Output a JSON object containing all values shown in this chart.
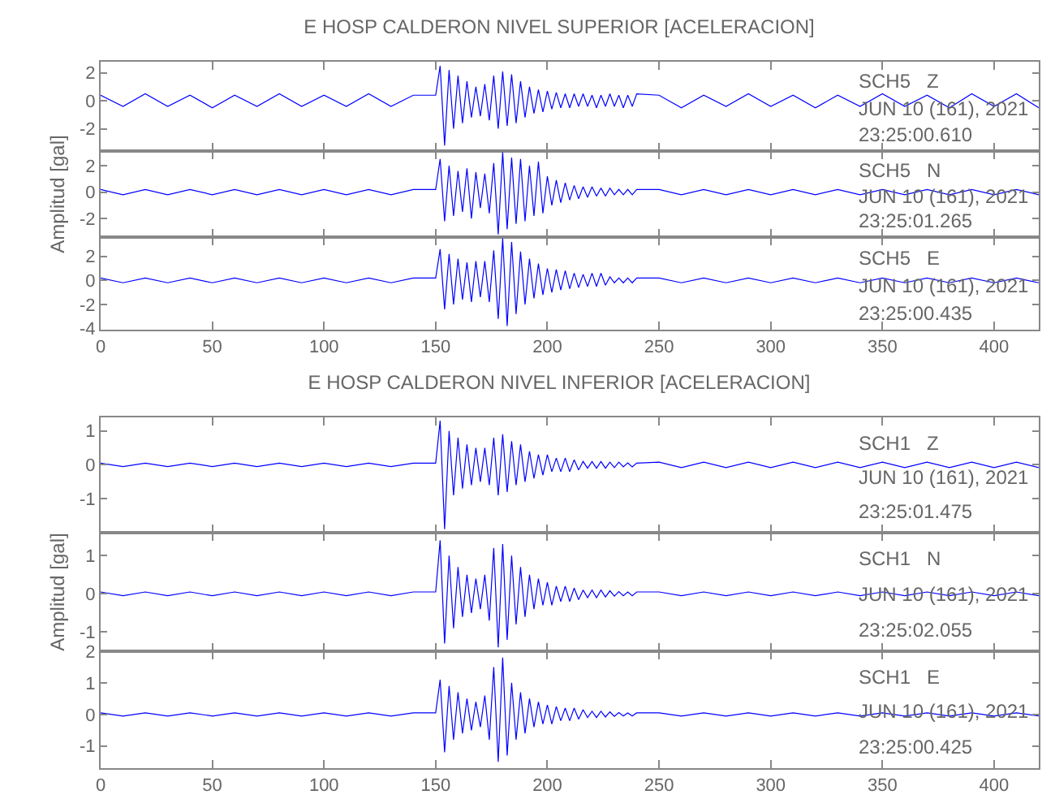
{
  "chart_data": [
    {
      "type": "line",
      "title": "E HOSP CALDERON NIVEL SUPERIOR [ACELERACION]",
      "tick_labels": "y",
      "xlim": [
        0,
        420
      ],
      "xticks": [
        0,
        50,
        100,
        150,
        200,
        250,
        300,
        350,
        400
      ],
      "ylim": [
        -3.6,
        2.8
      ],
      "yticks": [
        -2,
        0,
        2
      ],
      "annotations": [
        "SCH5   Z",
        "JUN 10 (161), 2021",
        "23:25:00.610"
      ],
      "x": [
        0,
        10,
        20,
        30,
        40,
        50,
        60,
        70,
        80,
        90,
        100,
        110,
        120,
        130,
        140,
        150,
        152,
        154,
        156,
        158,
        160,
        162,
        164,
        166,
        168,
        170,
        172,
        174,
        176,
        178,
        180,
        182,
        184,
        186,
        188,
        190,
        192,
        194,
        196,
        198,
        200,
        202,
        204,
        206,
        208,
        210,
        212,
        214,
        216,
        218,
        220,
        222,
        224,
        226,
        228,
        230,
        232,
        234,
        236,
        238,
        240,
        250,
        260,
        270,
        280,
        290,
        300,
        310,
        320,
        330,
        340,
        350,
        360,
        370,
        380,
        390,
        400,
        410,
        420
      ],
      "series": [
        {
          "color": "#0000ff",
          "values": [
            0.4,
            -0.4,
            0.5,
            -0.4,
            0.4,
            -0.5,
            0.4,
            -0.4,
            0.5,
            -0.4,
            0.4,
            -0.4,
            0.5,
            -0.4,
            0.4,
            0.4,
            2.5,
            -3.2,
            2.2,
            -2.0,
            1.8,
            -1.6,
            1.4,
            -1.2,
            1.0,
            -1.1,
            1.2,
            -1.4,
            1.8,
            -2.0,
            2.1,
            -1.8,
            1.9,
            -1.6,
            1.4,
            -1.2,
            1.0,
            -0.9,
            0.8,
            -0.8,
            0.7,
            -0.6,
            0.6,
            -0.5,
            0.5,
            -0.5,
            0.5,
            -0.4,
            0.5,
            -0.4,
            0.4,
            -0.5,
            0.4,
            -0.4,
            0.5,
            -0.4,
            0.4,
            -0.5,
            0.4,
            -0.4,
            0.5,
            0.4,
            -0.5,
            0.4,
            -0.4,
            0.5,
            -0.4,
            0.4,
            -0.5,
            0.4,
            -0.4,
            0.5,
            -0.4,
            0.4,
            -0.5,
            0.5,
            -0.4,
            0.5,
            -0.5
          ]
        }
      ]
    },
    {
      "type": "line",
      "ylabel": "Amplitud [gal]",
      "tick_labels": "y",
      "xlim": [
        0,
        420
      ],
      "xticks": [
        0,
        50,
        100,
        150,
        200,
        250,
        300,
        350,
        400
      ],
      "ylim": [
        -3.4,
        3.1
      ],
      "yticks": [
        -2,
        0,
        2
      ],
      "annotations": [
        "SCH5   N",
        "JUN 10 (161), 2021",
        "23:25:01.265"
      ],
      "x": [
        0,
        10,
        20,
        30,
        40,
        50,
        60,
        70,
        80,
        90,
        100,
        110,
        120,
        130,
        140,
        150,
        152,
        154,
        156,
        158,
        160,
        162,
        164,
        166,
        168,
        170,
        172,
        174,
        176,
        178,
        180,
        182,
        184,
        186,
        188,
        190,
        192,
        194,
        196,
        198,
        200,
        202,
        204,
        206,
        208,
        210,
        212,
        214,
        216,
        218,
        220,
        222,
        224,
        226,
        228,
        230,
        232,
        234,
        236,
        238,
        240,
        250,
        260,
        270,
        280,
        290,
        300,
        310,
        320,
        330,
        340,
        350,
        360,
        370,
        380,
        390,
        400,
        410,
        420
      ],
      "series": [
        {
          "color": "#0000ff",
          "values": [
            0.2,
            -0.2,
            0.2,
            -0.2,
            0.2,
            -0.2,
            0.2,
            -0.2,
            0.2,
            -0.2,
            0.2,
            -0.2,
            0.2,
            -0.2,
            0.2,
            0.2,
            2.5,
            -2.2,
            2.0,
            -1.8,
            1.6,
            -1.5,
            1.8,
            -2.0,
            1.5,
            -1.2,
            1.4,
            -1.6,
            2.2,
            -3.2,
            3.0,
            -2.8,
            2.6,
            -2.4,
            2.5,
            -2.2,
            2.0,
            -1.8,
            2.3,
            -1.6,
            1.2,
            -1.0,
            0.9,
            -0.8,
            0.7,
            -0.6,
            0.5,
            -0.5,
            0.4,
            -0.4,
            0.4,
            -0.3,
            0.3,
            -0.3,
            0.3,
            -0.2,
            0.2,
            -0.2,
            0.2,
            -0.2,
            0.2,
            0.2,
            -0.2,
            0.2,
            -0.2,
            0.2,
            -0.2,
            0.2,
            -0.2,
            0.2,
            -0.2,
            0.2,
            -0.2,
            0.2,
            -0.2,
            0.2,
            -0.2,
            0.2,
            -0.2
          ]
        }
      ]
    },
    {
      "type": "line",
      "xlim": [
        0,
        420
      ],
      "xticks": [
        0,
        50,
        100,
        150,
        200,
        250,
        300,
        350,
        400
      ],
      "ylim": [
        -4.1,
        3.6
      ],
      "yticks": [
        -4,
        -2,
        0,
        2
      ],
      "annotations": [
        "SCH5   E",
        "JUN 10 (161), 2021",
        "23:25:00.435"
      ],
      "x": [
        0,
        10,
        20,
        30,
        40,
        50,
        60,
        70,
        80,
        90,
        100,
        110,
        120,
        130,
        140,
        150,
        152,
        154,
        156,
        158,
        160,
        162,
        164,
        166,
        168,
        170,
        172,
        174,
        176,
        178,
        180,
        182,
        184,
        186,
        188,
        190,
        192,
        194,
        196,
        198,
        200,
        202,
        204,
        206,
        208,
        210,
        212,
        214,
        216,
        218,
        220,
        222,
        224,
        226,
        228,
        230,
        232,
        234,
        236,
        238,
        240,
        250,
        260,
        270,
        280,
        290,
        300,
        310,
        320,
        330,
        340,
        350,
        360,
        370,
        380,
        390,
        400,
        410,
        420
      ],
      "series": [
        {
          "color": "#0000ff",
          "values": [
            0.2,
            -0.2,
            0.2,
            -0.2,
            0.2,
            -0.2,
            0.2,
            -0.2,
            0.2,
            -0.2,
            0.2,
            -0.2,
            0.2,
            -0.2,
            0.2,
            0.2,
            2.6,
            -2.4,
            2.2,
            -2.0,
            1.8,
            -1.6,
            1.5,
            -1.8,
            1.6,
            -1.4,
            1.6,
            -1.8,
            2.5,
            -3.2,
            3.5,
            -3.8,
            3.2,
            -2.8,
            2.4,
            -2.0,
            1.8,
            -1.5,
            1.4,
            -1.2,
            1.0,
            -1.0,
            0.9,
            -0.8,
            0.8,
            -0.7,
            0.6,
            -0.6,
            0.5,
            -0.5,
            0.6,
            -0.5,
            0.6,
            -0.4,
            0.3,
            -0.2,
            0.2,
            -0.2,
            0.2,
            -0.2,
            0.2,
            0.2,
            -0.2,
            0.2,
            -0.2,
            0.2,
            -0.2,
            0.2,
            -0.2,
            0.2,
            -0.2,
            0.2,
            -0.2,
            0.2,
            -0.2,
            0.2,
            -0.2,
            0.2,
            -0.2
          ]
        }
      ]
    },
    {
      "type": "line",
      "title": "E HOSP CALDERON NIVEL INFERIOR [ACELERACION]",
      "tick_labels": "y",
      "xlim": [
        0,
        420
      ],
      "xticks": [
        0,
        50,
        100,
        150,
        200,
        250,
        300,
        350,
        400
      ],
      "ylim": [
        -2,
        1.4
      ],
      "yticks": [
        -1,
        0,
        1
      ],
      "annotations": [
        "SCH1   Z",
        "JUN 10 (161), 2021",
        "23:25:01.475"
      ],
      "x": [
        0,
        10,
        20,
        30,
        40,
        50,
        60,
        70,
        80,
        90,
        100,
        110,
        120,
        130,
        140,
        150,
        152,
        154,
        156,
        158,
        160,
        162,
        164,
        166,
        168,
        170,
        172,
        174,
        176,
        178,
        180,
        182,
        184,
        186,
        188,
        190,
        192,
        194,
        196,
        198,
        200,
        202,
        204,
        206,
        208,
        210,
        212,
        214,
        216,
        218,
        220,
        222,
        224,
        226,
        228,
        230,
        232,
        234,
        236,
        238,
        240,
        250,
        260,
        270,
        280,
        290,
        300,
        310,
        320,
        330,
        340,
        350,
        360,
        370,
        380,
        390,
        400,
        410,
        420
      ],
      "series": [
        {
          "color": "#0000ff",
          "values": [
            0.05,
            -0.05,
            0.05,
            -0.05,
            0.05,
            -0.05,
            0.05,
            -0.05,
            0.05,
            -0.05,
            0.05,
            -0.05,
            0.05,
            -0.05,
            0.05,
            0.05,
            1.3,
            -1.9,
            1.0,
            -0.9,
            0.8,
            -0.7,
            0.6,
            -0.6,
            0.5,
            -0.5,
            0.5,
            -0.6,
            0.8,
            -0.9,
            0.9,
            -0.8,
            0.7,
            -0.6,
            0.6,
            -0.5,
            0.4,
            -0.4,
            0.3,
            -0.3,
            0.3,
            -0.2,
            0.2,
            -0.2,
            0.2,
            -0.2,
            0.15,
            -0.15,
            0.1,
            -0.1,
            0.1,
            -0.1,
            0.1,
            -0.1,
            0.08,
            -0.08,
            0.08,
            -0.06,
            0.06,
            -0.06,
            0.05,
            0.08,
            -0.08,
            0.08,
            -0.08,
            0.08,
            -0.08,
            0.08,
            -0.08,
            0.08,
            -0.08,
            0.08,
            -0.08,
            0.08,
            -0.08,
            0.08,
            -0.08,
            0.08,
            -0.08
          ]
        }
      ]
    },
    {
      "type": "line",
      "ylabel": "Amplitud [gal]",
      "tick_labels": "y",
      "xlim": [
        0,
        420
      ],
      "xticks": [
        0,
        50,
        100,
        150,
        200,
        250,
        300,
        350,
        400
      ],
      "ylim": [
        -1.5,
        1.6
      ],
      "yticks": [
        -1,
        0,
        1
      ],
      "annotations": [
        "SCH1   N",
        "JUN 10 (161), 2021",
        "23:25:02.055"
      ],
      "x": [
        0,
        10,
        20,
        30,
        40,
        50,
        60,
        70,
        80,
        90,
        100,
        110,
        120,
        130,
        140,
        150,
        152,
        154,
        156,
        158,
        160,
        162,
        164,
        166,
        168,
        170,
        172,
        174,
        176,
        178,
        180,
        182,
        184,
        186,
        188,
        190,
        192,
        194,
        196,
        198,
        200,
        202,
        204,
        206,
        208,
        210,
        212,
        214,
        216,
        218,
        220,
        222,
        224,
        226,
        228,
        230,
        232,
        234,
        236,
        238,
        240,
        250,
        260,
        270,
        280,
        290,
        300,
        310,
        320,
        330,
        340,
        350,
        360,
        370,
        380,
        390,
        400,
        410,
        420
      ],
      "series": [
        {
          "color": "#0000ff",
          "values": [
            0.05,
            -0.05,
            0.05,
            -0.05,
            0.05,
            -0.05,
            0.05,
            -0.05,
            0.05,
            -0.05,
            0.05,
            -0.05,
            0.05,
            -0.05,
            0.05,
            0.05,
            1.4,
            -1.3,
            1.0,
            -0.9,
            0.7,
            -0.6,
            0.5,
            -0.5,
            0.4,
            -0.4,
            0.5,
            -0.7,
            1.2,
            -1.4,
            1.3,
            -1.2,
            1.0,
            -0.8,
            0.7,
            -0.6,
            0.5,
            -0.4,
            0.4,
            -0.3,
            0.3,
            -0.3,
            0.2,
            -0.2,
            0.2,
            -0.2,
            0.15,
            -0.15,
            0.1,
            -0.1,
            0.1,
            -0.1,
            0.1,
            -0.08,
            0.08,
            -0.06,
            0.06,
            -0.05,
            0.05,
            -0.05,
            0.05,
            0.05,
            -0.05,
            0.05,
            -0.05,
            0.05,
            -0.05,
            0.05,
            -0.05,
            0.05,
            -0.05,
            0.05,
            -0.05,
            0.05,
            -0.05,
            0.05,
            -0.05,
            0.05,
            -0.05
          ]
        }
      ]
    },
    {
      "type": "line",
      "xlim": [
        0,
        420
      ],
      "xticks": [
        0,
        50,
        100,
        150,
        200,
        250,
        300,
        350,
        400
      ],
      "ylim": [
        -1.7,
        2
      ],
      "yticks": [
        -1,
        0,
        1,
        2
      ],
      "annotations": [
        "SCH1   E",
        "JUN 10 (161), 2021",
        "23:25:00.425"
      ],
      "x": [
        0,
        10,
        20,
        30,
        40,
        50,
        60,
        70,
        80,
        90,
        100,
        110,
        120,
        130,
        140,
        150,
        152,
        154,
        156,
        158,
        160,
        162,
        164,
        166,
        168,
        170,
        172,
        174,
        176,
        178,
        180,
        182,
        184,
        186,
        188,
        190,
        192,
        194,
        196,
        198,
        200,
        202,
        204,
        206,
        208,
        210,
        212,
        214,
        216,
        218,
        220,
        222,
        224,
        226,
        228,
        230,
        232,
        234,
        236,
        238,
        240,
        250,
        260,
        270,
        280,
        290,
        300,
        310,
        320,
        330,
        340,
        350,
        360,
        370,
        380,
        390,
        400,
        410,
        420
      ],
      "series": [
        {
          "color": "#0000ff",
          "values": [
            0.05,
            -0.05,
            0.05,
            -0.05,
            0.05,
            -0.05,
            0.05,
            -0.05,
            0.05,
            -0.05,
            0.05,
            -0.05,
            0.05,
            -0.05,
            0.05,
            0.05,
            1.1,
            -1.2,
            0.9,
            -0.8,
            0.7,
            -0.6,
            0.5,
            -0.5,
            0.4,
            -0.4,
            0.6,
            -0.8,
            1.5,
            -1.5,
            1.8,
            -1.3,
            1.0,
            -0.8,
            0.7,
            -0.6,
            0.5,
            -0.4,
            0.4,
            -0.3,
            0.3,
            -0.3,
            0.25,
            -0.2,
            0.2,
            -0.2,
            0.2,
            -0.15,
            0.15,
            -0.1,
            0.1,
            -0.1,
            0.1,
            -0.08,
            0.08,
            -0.06,
            0.06,
            -0.05,
            0.05,
            -0.05,
            0.05,
            0.05,
            -0.05,
            0.05,
            -0.05,
            0.05,
            -0.05,
            0.05,
            -0.05,
            0.05,
            -0.05,
            0.05,
            -0.05,
            0.05,
            -0.05,
            0.05,
            -0.05,
            0.05,
            -0.05
          ]
        }
      ]
    }
  ]
}
